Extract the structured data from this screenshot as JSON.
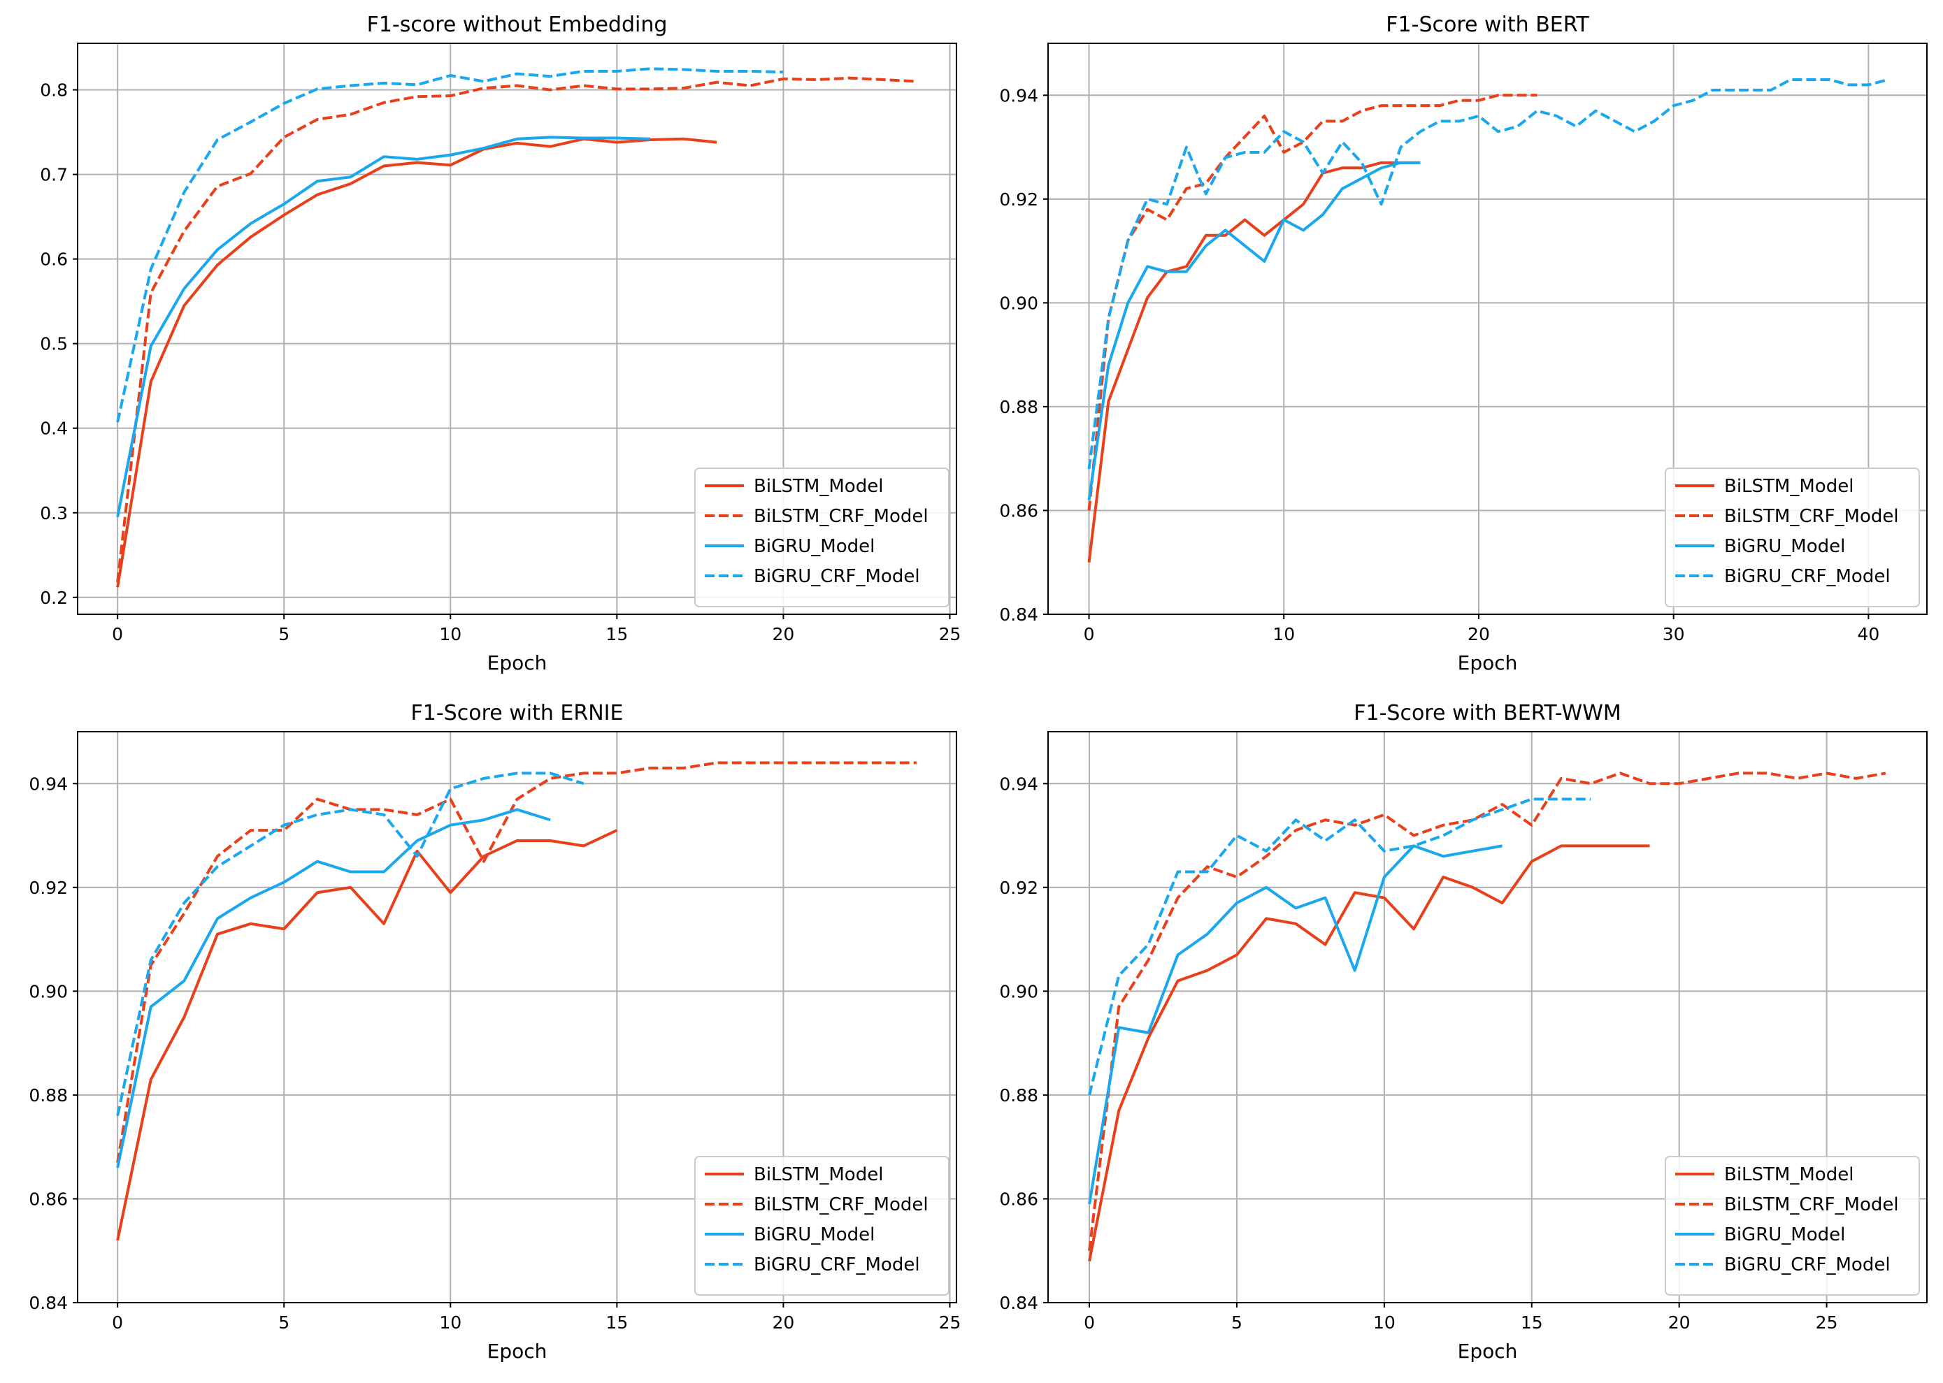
{
  "colors": {
    "bilstm": "#e8401a",
    "bigru": "#1aa7ee",
    "grid": "#b0b0b0",
    "axis": "#000000"
  },
  "chart_data": [
    {
      "type": "line",
      "title": "F1-score without Embedding",
      "xlabel": "Epoch",
      "ylabel": "",
      "xlim": [
        -1.2,
        25.2
      ],
      "ylim": [
        0.18,
        0.855
      ],
      "xticks": [
        0,
        5,
        10,
        15,
        20,
        25
      ],
      "yticks": [
        0.2,
        0.3,
        0.4,
        0.5,
        0.6,
        0.7,
        0.8
      ],
      "grid": true,
      "legend_position": "lower-right",
      "series": [
        {
          "name": "BiLSTM_Model",
          "color": "#e8401a",
          "dash": "solid",
          "y": [
            0.212,
            0.455,
            0.545,
            0.593,
            0.626,
            0.652,
            0.676,
            0.689,
            0.71,
            0.714,
            0.711,
            0.73,
            0.737,
            0.733,
            0.742,
            0.738,
            0.741,
            0.742,
            0.738
          ]
        },
        {
          "name": "BiLSTM_CRF_Model",
          "color": "#e8401a",
          "dash": "dashed",
          "y": [
            0.218,
            0.56,
            0.633,
            0.686,
            0.701,
            0.744,
            0.765,
            0.771,
            0.785,
            0.792,
            0.793,
            0.802,
            0.805,
            0.8,
            0.805,
            0.801,
            0.801,
            0.802,
            0.809,
            0.805,
            0.813,
            0.812,
            0.814,
            0.812,
            0.81
          ]
        },
        {
          "name": "BiGRU_Model",
          "color": "#1aa7ee",
          "dash": "solid",
          "y": [
            0.295,
            0.497,
            0.565,
            0.611,
            0.642,
            0.665,
            0.692,
            0.697,
            0.721,
            0.718,
            0.723,
            0.731,
            0.742,
            0.744,
            0.743,
            0.743,
            0.742
          ]
        },
        {
          "name": "BiGRU_CRF_Model",
          "color": "#1aa7ee",
          "dash": "dashed",
          "y": [
            0.407,
            0.588,
            0.679,
            0.741,
            0.762,
            0.784,
            0.801,
            0.805,
            0.808,
            0.806,
            0.817,
            0.81,
            0.819,
            0.816,
            0.822,
            0.822,
            0.825,
            0.824,
            0.822,
            0.822,
            0.821
          ]
        }
      ]
    },
    {
      "type": "line",
      "title": "F1-Score with BERT",
      "xlabel": "Epoch",
      "ylabel": "",
      "xlim": [
        -2.1,
        43.0
      ],
      "ylim": [
        0.84,
        0.95
      ],
      "xticks": [
        0,
        10,
        20,
        30,
        40
      ],
      "yticks": [
        0.84,
        0.86,
        0.88,
        0.9,
        0.92,
        0.94
      ],
      "grid": true,
      "legend_position": "lower-right",
      "series": [
        {
          "name": "BiLSTM_Model",
          "color": "#e8401a",
          "dash": "solid",
          "y": [
            0.85,
            0.881,
            0.891,
            0.901,
            0.906,
            0.907,
            0.913,
            0.913,
            0.916,
            0.913,
            0.916,
            0.919,
            0.925,
            0.926,
            0.926,
            0.927,
            0.927,
            0.927
          ]
        },
        {
          "name": "BiLSTM_CRF_Model",
          "color": "#e8401a",
          "dash": "dashed",
          "y": [
            0.86,
            0.897,
            0.912,
            0.918,
            0.916,
            0.922,
            0.923,
            0.928,
            0.932,
            0.936,
            0.929,
            0.931,
            0.935,
            0.935,
            0.937,
            0.938,
            0.938,
            0.938,
            0.938,
            0.939,
            0.939,
            0.94,
            0.94,
            0.94
          ]
        },
        {
          "name": "BiGRU_Model",
          "color": "#1aa7ee",
          "dash": "solid",
          "y": [
            0.862,
            0.888,
            0.9,
            0.907,
            0.906,
            0.906,
            0.911,
            0.914,
            0.911,
            0.908,
            0.916,
            0.914,
            0.917,
            0.922,
            0.924,
            0.926,
            0.927,
            0.927
          ]
        },
        {
          "name": "BiGRU_CRF_Model",
          "color": "#1aa7ee",
          "dash": "dashed",
          "y": [
            0.868,
            0.897,
            0.912,
            0.92,
            0.919,
            0.93,
            0.921,
            0.928,
            0.929,
            0.929,
            0.933,
            0.931,
            0.925,
            0.931,
            0.927,
            0.919,
            0.93,
            0.933,
            0.935,
            0.935,
            0.936,
            0.933,
            0.934,
            0.937,
            0.936,
            0.934,
            0.937,
            0.935,
            0.933,
            0.935,
            0.938,
            0.939,
            0.941,
            0.941,
            0.941,
            0.941,
            0.943,
            0.943,
            0.943,
            0.942,
            0.942,
            0.943
          ]
        }
      ]
    },
    {
      "type": "line",
      "title": "F1-Score with ERNIE",
      "xlabel": "Epoch",
      "ylabel": "",
      "xlim": [
        -1.2,
        25.2
      ],
      "ylim": [
        0.84,
        0.95
      ],
      "xticks": [
        0,
        5,
        10,
        15,
        20,
        25
      ],
      "yticks": [
        0.84,
        0.86,
        0.88,
        0.9,
        0.92,
        0.94
      ],
      "grid": true,
      "legend_position": "lower-right",
      "series": [
        {
          "name": "BiLSTM_Model",
          "color": "#e8401a",
          "dash": "solid",
          "y": [
            0.852,
            0.883,
            0.895,
            0.911,
            0.913,
            0.912,
            0.919,
            0.92,
            0.913,
            0.927,
            0.919,
            0.926,
            0.929,
            0.929,
            0.928,
            0.931
          ]
        },
        {
          "name": "BiLSTM_CRF_Model",
          "color": "#e8401a",
          "dash": "dashed",
          "y": [
            0.867,
            0.905,
            0.915,
            0.926,
            0.931,
            0.931,
            0.937,
            0.935,
            0.935,
            0.934,
            0.937,
            0.925,
            0.937,
            0.941,
            0.942,
            0.942,
            0.943,
            0.943,
            0.944,
            0.944,
            0.944,
            0.944,
            0.944,
            0.944,
            0.944
          ]
        },
        {
          "name": "BiGRU_Model",
          "color": "#1aa7ee",
          "dash": "solid",
          "y": [
            0.866,
            0.897,
            0.902,
            0.914,
            0.918,
            0.921,
            0.925,
            0.923,
            0.923,
            0.929,
            0.932,
            0.933,
            0.935,
            0.933
          ]
        },
        {
          "name": "BiGRU_CRF_Model",
          "color": "#1aa7ee",
          "dash": "dashed",
          "y": [
            0.876,
            0.906,
            0.917,
            0.924,
            0.928,
            0.932,
            0.934,
            0.935,
            0.934,
            0.926,
            0.939,
            0.941,
            0.942,
            0.942,
            0.94
          ]
        }
      ]
    },
    {
      "type": "line",
      "title": "F1-Score with BERT-WWM",
      "xlabel": "Epoch",
      "ylabel": "",
      "xlim": [
        -1.4,
        28.4
      ],
      "ylim": [
        0.84,
        0.95
      ],
      "xticks": [
        0,
        5,
        10,
        15,
        20,
        25
      ],
      "yticks": [
        0.84,
        0.86,
        0.88,
        0.9,
        0.92,
        0.94
      ],
      "grid": true,
      "legend_position": "lower-right",
      "series": [
        {
          "name": "BiLSTM_Model",
          "color": "#e8401a",
          "dash": "solid",
          "y": [
            0.848,
            0.877,
            0.891,
            0.902,
            0.904,
            0.907,
            0.914,
            0.913,
            0.909,
            0.919,
            0.918,
            0.912,
            0.922,
            0.92,
            0.917,
            0.925,
            0.928,
            0.928,
            0.928,
            0.928
          ]
        },
        {
          "name": "BiLSTM_CRF_Model",
          "color": "#e8401a",
          "dash": "dashed",
          "y": [
            0.85,
            0.897,
            0.906,
            0.918,
            0.924,
            0.922,
            0.926,
            0.931,
            0.933,
            0.932,
            0.934,
            0.93,
            0.932,
            0.933,
            0.936,
            0.932,
            0.941,
            0.94,
            0.942,
            0.94,
            0.94,
            0.941,
            0.942,
            0.942,
            0.941,
            0.942,
            0.941,
            0.942
          ]
        },
        {
          "name": "BiGRU_Model",
          "color": "#1aa7ee",
          "dash": "solid",
          "y": [
            0.859,
            0.893,
            0.892,
            0.907,
            0.911,
            0.917,
            0.92,
            0.916,
            0.918,
            0.904,
            0.922,
            0.928,
            0.926,
            0.927,
            0.928
          ]
        },
        {
          "name": "BiGRU_CRF_Model",
          "color": "#1aa7ee",
          "dash": "dashed",
          "y": [
            0.88,
            0.903,
            0.909,
            0.923,
            0.923,
            0.93,
            0.927,
            0.933,
            0.929,
            0.933,
            0.927,
            0.928,
            0.93,
            0.933,
            0.935,
            0.937,
            0.937,
            0.937
          ]
        }
      ]
    }
  ]
}
